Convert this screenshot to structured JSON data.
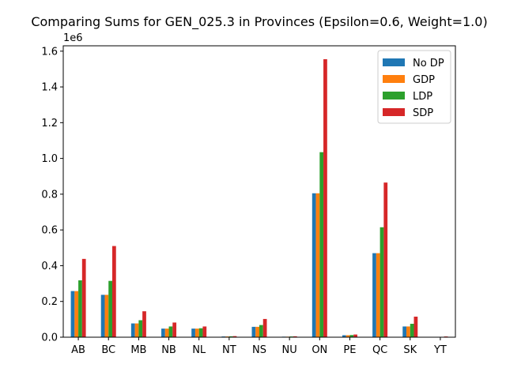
{
  "chart_data": {
    "type": "bar",
    "title": "Comparing Sums for GEN_025.3 in Provinces (Epsilon=0.6, Weight=1.0)",
    "xlabel": "",
    "ylabel": "",
    "y_offset_label": "1e6",
    "ylim": [
      0,
      1.63
    ],
    "y_ticks": [
      "0.0",
      "0.2",
      "0.4",
      "0.6",
      "0.8",
      "1.0",
      "1.2",
      "1.4",
      "1.6"
    ],
    "legend_position": "top-right",
    "grid": false,
    "categories": [
      "AB",
      "BC",
      "MB",
      "NB",
      "NL",
      "NT",
      "NS",
      "NU",
      "ON",
      "PE",
      "QC",
      "SK",
      "YT"
    ],
    "series": [
      {
        "name": "No DP",
        "color": "#1f77b4",
        "values": [
          0.258,
          0.237,
          0.077,
          0.048,
          0.048,
          0.004,
          0.058,
          0.003,
          0.805,
          0.011,
          0.47,
          0.06,
          0.002
        ]
      },
      {
        "name": "GDP",
        "color": "#ff7f0e",
        "values": [
          0.258,
          0.237,
          0.077,
          0.048,
          0.048,
          0.004,
          0.058,
          0.003,
          0.805,
          0.011,
          0.47,
          0.06,
          0.002
        ]
      },
      {
        "name": "LDP",
        "color": "#2ca02c",
        "values": [
          0.318,
          0.315,
          0.095,
          0.06,
          0.05,
          0.005,
          0.068,
          0.004,
          1.035,
          0.012,
          0.615,
          0.075,
          0.002
        ]
      },
      {
        "name": "SDP",
        "color": "#d62728",
        "values": [
          0.438,
          0.51,
          0.145,
          0.082,
          0.06,
          0.006,
          0.102,
          0.005,
          1.555,
          0.015,
          0.865,
          0.115,
          0.004
        ]
      }
    ]
  }
}
